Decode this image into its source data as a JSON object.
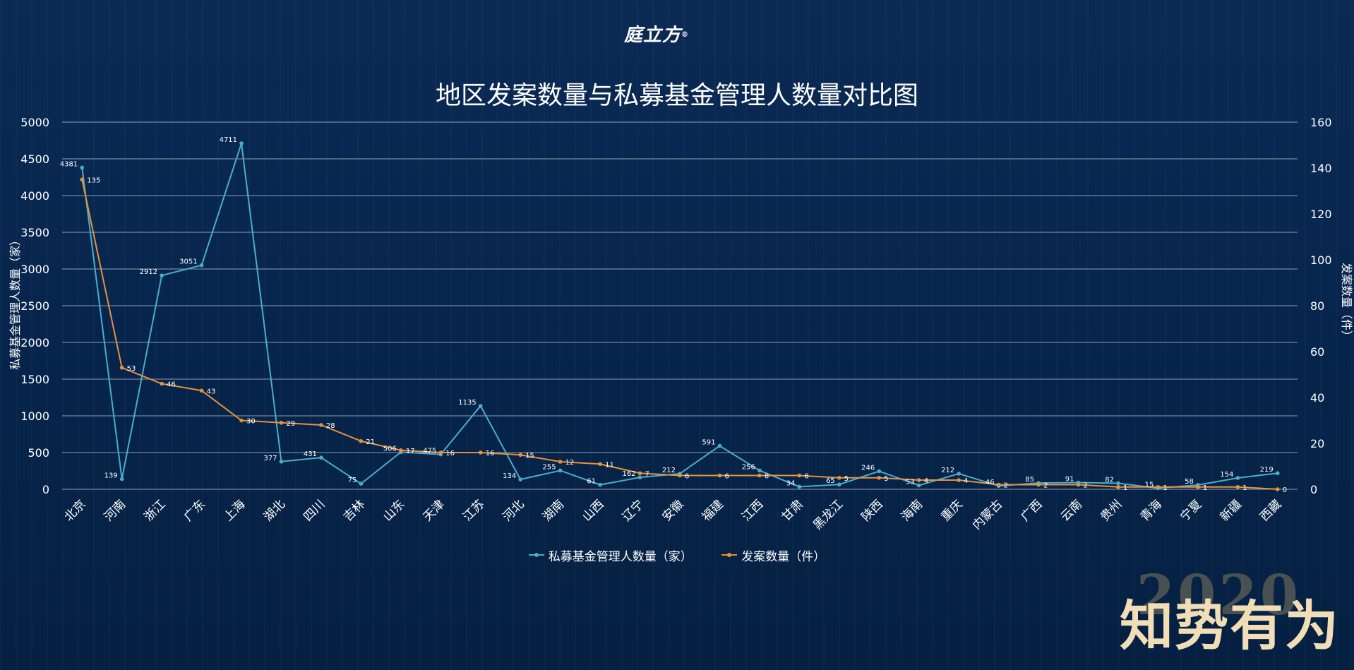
{
  "brand": {
    "logo_text": "庭立方",
    "logo_mark": "®"
  },
  "slogan": {
    "year": "2020",
    "text": "知势有为"
  },
  "colors": {
    "series1": "#4aaecb",
    "series2": "#e8913c"
  },
  "chart_data": {
    "type": "line",
    "title": "地区发案数量与私募基金管理人数量对比图",
    "ylabel": "私募基金管理人数量（家）",
    "y2label": "发案数量（件）",
    "ylim": [
      0,
      5000
    ],
    "yticks": [
      0,
      500,
      1000,
      1500,
      2000,
      2500,
      3000,
      3500,
      4000,
      4500,
      5000
    ],
    "y2lim": [
      0,
      160
    ],
    "y2ticks": [
      0,
      20,
      40,
      60,
      80,
      100,
      120,
      140,
      160
    ],
    "grid": true,
    "legend": "bottom",
    "categories": [
      "北京",
      "河南",
      "浙江",
      "广东",
      "上海",
      "湖北",
      "四川",
      "吉林",
      "山东",
      "天津",
      "江苏",
      "河北",
      "湖南",
      "山西",
      "辽宁",
      "安徽",
      "福建",
      "江西",
      "甘肃",
      "黑龙江",
      "陕西",
      "海南",
      "重庆",
      "内蒙古",
      "广西",
      "云南",
      "贵州",
      "青海",
      "宁夏",
      "新疆",
      "西藏"
    ],
    "series": [
      {
        "name": "私募基金管理人数量（家）",
        "axis": "left",
        "values": [
          4381,
          139,
          2912,
          3051,
          4711,
          377,
          431,
          75,
          506,
          475,
          1135,
          134,
          255,
          61,
          162,
          212,
          591,
          256,
          34,
          65,
          246,
          53,
          212,
          46,
          85,
          91,
          82,
          15,
          58,
          154,
          219
        ]
      },
      {
        "name": "发案数量（件）",
        "axis": "right",
        "values": [
          135,
          53,
          46,
          43,
          30,
          29,
          28,
          21,
          17,
          16,
          16,
          15,
          12,
          11,
          7,
          6,
          6,
          6,
          6,
          5,
          5,
          4,
          4,
          2,
          2,
          2,
          1,
          1,
          1,
          1,
          0
        ]
      }
    ]
  }
}
